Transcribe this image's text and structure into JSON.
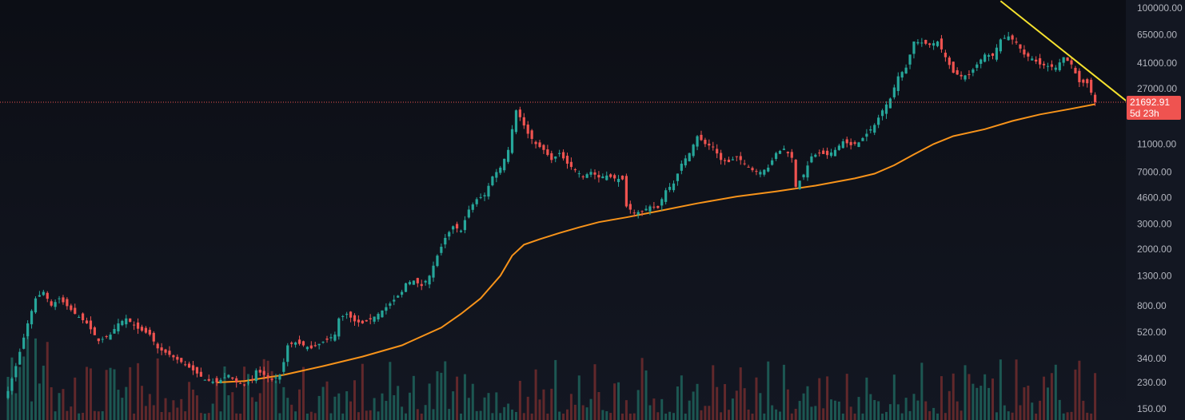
{
  "chart_data": {
    "type": "candlestick",
    "y_scale": "log",
    "ylim": [
      140,
      110000
    ],
    "y_ticks": [
      100000,
      65000,
      41000,
      27000,
      11000,
      7000,
      4600,
      3000,
      2000,
      1300,
      800,
      520,
      340,
      230,
      150
    ],
    "y_tick_labels": [
      "100000.00",
      "65000.00",
      "41000.00",
      "27000.00",
      "11000.00",
      "7000.00",
      "4600.00",
      "3000.00",
      "2000.00",
      "1300.00",
      "800.00",
      "520.00",
      "340.00",
      "230.00",
      "150.00"
    ],
    "price_path": [
      [
        0,
        200
      ],
      [
        2,
        300
      ],
      [
        5,
        600
      ],
      [
        7,
        900
      ],
      [
        9,
        1000
      ],
      [
        11,
        800
      ],
      [
        13,
        900
      ],
      [
        17,
        700
      ],
      [
        20,
        600
      ],
      [
        23,
        450
      ],
      [
        26,
        500
      ],
      [
        28,
        600
      ],
      [
        30,
        650
      ],
      [
        33,
        550
      ],
      [
        36,
        500
      ],
      [
        38,
        400
      ],
      [
        41,
        360
      ],
      [
        44,
        320
      ],
      [
        47,
        280
      ],
      [
        50,
        240
      ],
      [
        53,
        230
      ],
      [
        56,
        260
      ],
      [
        58,
        230
      ],
      [
        60,
        220
      ],
      [
        62,
        240
      ],
      [
        63,
        280
      ],
      [
        65,
        260
      ],
      [
        67,
        240
      ],
      [
        69,
        260
      ],
      [
        70,
        320
      ],
      [
        71,
        420
      ],
      [
        73,
        440
      ],
      [
        75,
        420
      ],
      [
        77,
        400
      ],
      [
        79,
        430
      ],
      [
        81,
        460
      ],
      [
        83,
        500
      ],
      [
        84,
        650
      ],
      [
        86,
        700
      ],
      [
        88,
        620
      ],
      [
        90,
        600
      ],
      [
        92,
        640
      ],
      [
        94,
        700
      ],
      [
        96,
        780
      ],
      [
        98,
        880
      ],
      [
        100,
        1000
      ],
      [
        101,
        1150
      ],
      [
        103,
        1200
      ],
      [
        105,
        1100
      ],
      [
        107,
        1300
      ],
      [
        109,
        1800
      ],
      [
        111,
        2400
      ],
      [
        113,
        2900
      ],
      [
        115,
        2700
      ],
      [
        117,
        3800
      ],
      [
        119,
        4500
      ],
      [
        121,
        4800
      ],
      [
        123,
        6500
      ],
      [
        125,
        7500
      ],
      [
        127,
        10000
      ],
      [
        128,
        14000
      ],
      [
        129,
        19000
      ],
      [
        130,
        17000
      ],
      [
        132,
        13000
      ],
      [
        134,
        11000
      ],
      [
        136,
        10000
      ],
      [
        138,
        8500
      ],
      [
        140,
        9500
      ],
      [
        142,
        8000
      ],
      [
        144,
        7200
      ],
      [
        146,
        6500
      ],
      [
        148,
        7000
      ],
      [
        150,
        6400
      ],
      [
        152,
        6600
      ],
      [
        154,
        6300
      ],
      [
        156,
        6200
      ],
      [
        157,
        4000
      ],
      [
        159,
        3600
      ],
      [
        161,
        3700
      ],
      [
        163,
        4000
      ],
      [
        165,
        3900
      ],
      [
        167,
        5200
      ],
      [
        169,
        5800
      ],
      [
        171,
        8000
      ],
      [
        173,
        9500
      ],
      [
        175,
        12500
      ],
      [
        177,
        11000
      ],
      [
        179,
        10500
      ],
      [
        181,
        8500
      ],
      [
        183,
        8200
      ],
      [
        185,
        9000
      ],
      [
        187,
        8000
      ],
      [
        189,
        7200
      ],
      [
        191,
        7000
      ],
      [
        193,
        7500
      ],
      [
        195,
        9500
      ],
      [
        197,
        10200
      ],
      [
        199,
        8800
      ],
      [
        200,
        5500
      ],
      [
        202,
        6700
      ],
      [
        204,
        9000
      ],
      [
        206,
        9500
      ],
      [
        208,
        9200
      ],
      [
        210,
        10000
      ],
      [
        212,
        11500
      ],
      [
        214,
        10800
      ],
      [
        216,
        11300
      ],
      [
        218,
        13000
      ],
      [
        220,
        15000
      ],
      [
        222,
        19000
      ],
      [
        224,
        23000
      ],
      [
        226,
        33000
      ],
      [
        228,
        38000
      ],
      [
        230,
        58000
      ],
      [
        232,
        57000
      ],
      [
        234,
        55000
      ],
      [
        236,
        58000
      ],
      [
        238,
        45000
      ],
      [
        240,
        35000
      ],
      [
        242,
        33000
      ],
      [
        244,
        34000
      ],
      [
        246,
        40000
      ],
      [
        248,
        47000
      ],
      [
        250,
        46000
      ],
      [
        252,
        60000
      ],
      [
        254,
        63000
      ],
      [
        256,
        57000
      ],
      [
        258,
        47000
      ],
      [
        260,
        44000
      ],
      [
        262,
        40000
      ],
      [
        264,
        39000
      ],
      [
        266,
        38000
      ],
      [
        268,
        45000
      ],
      [
        270,
        40000
      ],
      [
        272,
        30000
      ],
      [
        274,
        29500
      ],
      [
        276,
        21692.91
      ]
    ],
    "moving_average": {
      "color": "#f7931a",
      "values": [
        [
          53,
          230
        ],
        [
          60,
          235
        ],
        [
          70,
          260
        ],
        [
          80,
          300
        ],
        [
          90,
          350
        ],
        [
          100,
          420
        ],
        [
          110,
          560
        ],
        [
          115,
          700
        ],
        [
          120,
          900
        ],
        [
          125,
          1300
        ],
        [
          128,
          1800
        ],
        [
          131,
          2150
        ],
        [
          135,
          2350
        ],
        [
          140,
          2600
        ],
        [
          145,
          2850
        ],
        [
          150,
          3100
        ],
        [
          157,
          3350
        ],
        [
          165,
          3700
        ],
        [
          175,
          4200
        ],
        [
          185,
          4700
        ],
        [
          195,
          5100
        ],
        [
          205,
          5600
        ],
        [
          215,
          6300
        ],
        [
          220,
          6800
        ],
        [
          225,
          7800
        ],
        [
          230,
          9300
        ],
        [
          235,
          11000
        ],
        [
          240,
          12500
        ],
        [
          248,
          14000
        ],
        [
          255,
          16000
        ],
        [
          262,
          17800
        ],
        [
          270,
          19500
        ],
        [
          276,
          21000
        ]
      ]
    },
    "trendline": {
      "color": "#f5e12e",
      "from": [
        252,
        112000
      ],
      "to": [
        288,
        18000
      ]
    },
    "current_price": {
      "value": 21692.91,
      "label": "21692.91",
      "countdown": "5d 23h",
      "color": "#ef5350"
    },
    "colors": {
      "up": "#26a69a",
      "down": "#ef5350",
      "up_volume": "#1e5e58",
      "down_volume": "#6a2a2c"
    }
  }
}
